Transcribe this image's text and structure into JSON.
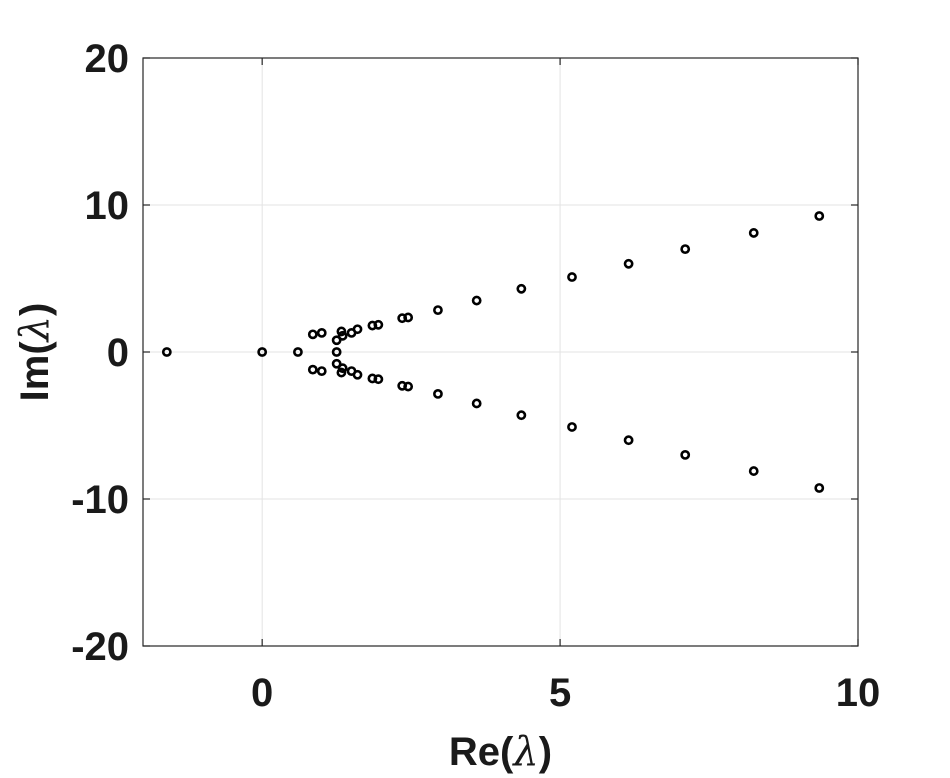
{
  "chart_data": {
    "type": "scatter",
    "title": "",
    "xlabel": "Re(",
    "xlabel_symbol": "λ",
    "xlabel_close": ")",
    "ylabel": "Im(",
    "ylabel_symbol": "λ",
    "ylabel_close": ")",
    "xlim": [
      -2,
      10
    ],
    "ylim": [
      -20,
      20
    ],
    "xticks": [
      0,
      5,
      10
    ],
    "yticks": [
      -20,
      -10,
      0,
      10,
      20
    ],
    "xtick_labels": [
      "0",
      "5",
      "10"
    ],
    "ytick_labels": [
      "-20",
      "-10",
      "0",
      "10",
      "20"
    ],
    "grid": true,
    "legend": "none",
    "marker": "open-circle",
    "marker_color": "#000000",
    "points": [
      [
        -1.6,
        0.0
      ],
      [
        0.0,
        0.0
      ],
      [
        0.6,
        0.0
      ],
      [
        0.85,
        1.2
      ],
      [
        0.85,
        -1.2
      ],
      [
        1.0,
        1.3
      ],
      [
        1.0,
        -1.3
      ],
      [
        1.25,
        0.8
      ],
      [
        1.25,
        -0.8
      ],
      [
        1.25,
        0.0
      ],
      [
        1.33,
        1.4
      ],
      [
        1.33,
        -1.4
      ],
      [
        1.35,
        1.1
      ],
      [
        1.35,
        -1.1
      ],
      [
        1.5,
        1.3
      ],
      [
        1.5,
        -1.3
      ],
      [
        1.6,
        1.55
      ],
      [
        1.6,
        -1.55
      ],
      [
        1.85,
        1.8
      ],
      [
        1.85,
        -1.8
      ],
      [
        1.95,
        1.85
      ],
      [
        1.95,
        -1.85
      ],
      [
        2.35,
        2.3
      ],
      [
        2.35,
        -2.3
      ],
      [
        2.45,
        2.35
      ],
      [
        2.45,
        -2.35
      ],
      [
        2.95,
        2.85
      ],
      [
        2.95,
        -2.85
      ],
      [
        3.6,
        3.5
      ],
      [
        3.6,
        -3.5
      ],
      [
        4.35,
        4.3
      ],
      [
        4.35,
        -4.3
      ],
      [
        5.2,
        5.1
      ],
      [
        5.2,
        -5.1
      ],
      [
        6.15,
        6.0
      ],
      [
        6.15,
        -6.0
      ],
      [
        7.1,
        7.0
      ],
      [
        7.1,
        -7.0
      ],
      [
        8.25,
        8.1
      ],
      [
        8.25,
        -8.1
      ],
      [
        9.35,
        9.25
      ],
      [
        9.35,
        -9.25
      ]
    ]
  }
}
